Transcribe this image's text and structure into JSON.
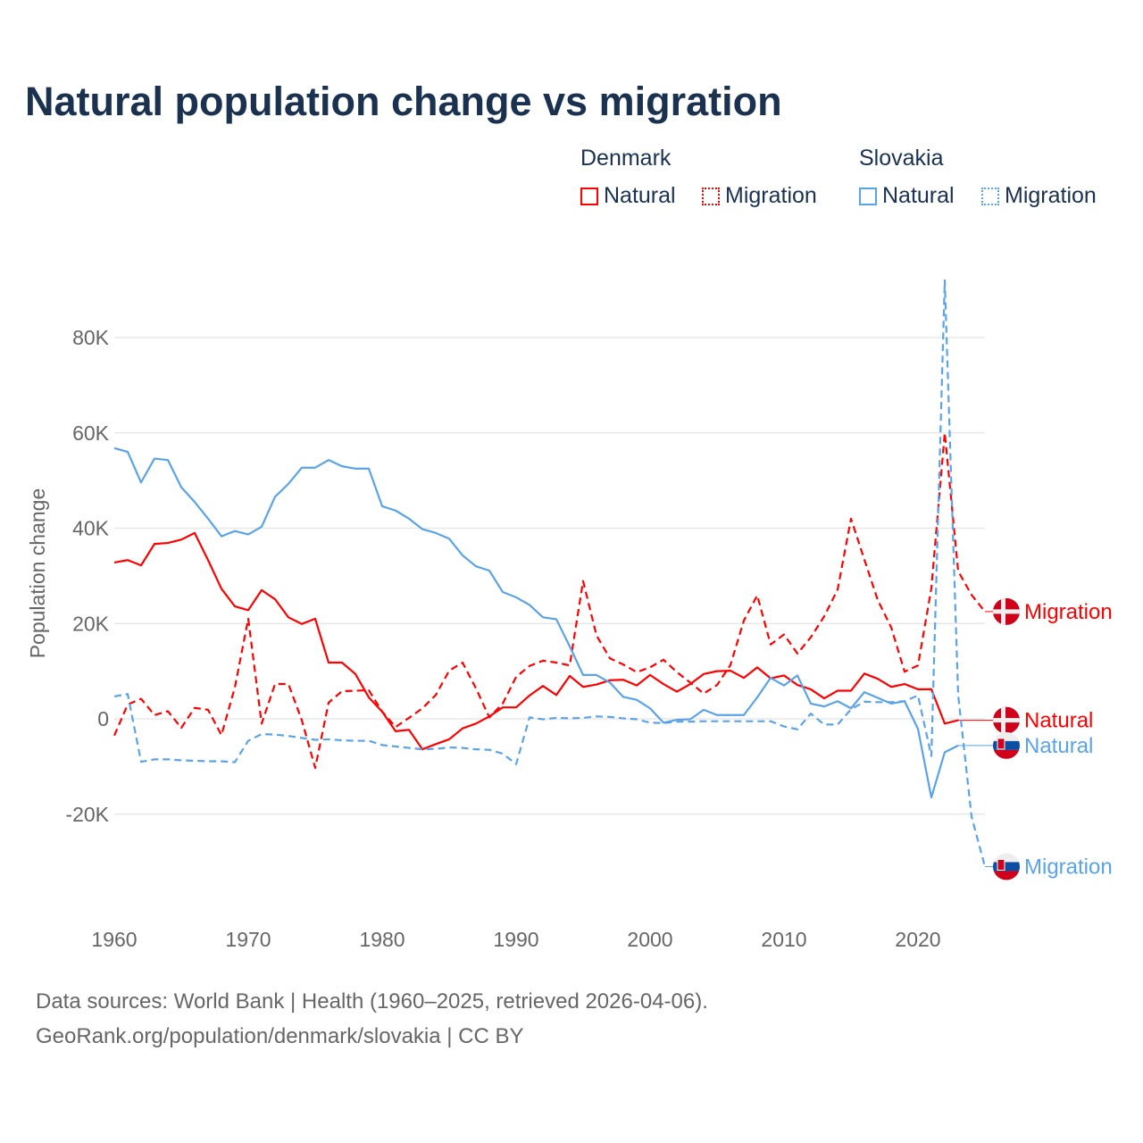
{
  "title": "Natural population change vs migration",
  "legend": {
    "groups": [
      {
        "country": "Denmark",
        "items": [
          "Natural",
          "Migration"
        ],
        "color": "#ff0000"
      },
      {
        "country": "Slovakia",
        "items": [
          "Natural",
          "Migration"
        ],
        "color": "#5ba3e8"
      }
    ]
  },
  "footer": {
    "line1": "Data sources: World Bank | Health (1960–2025, retrieved 2026-04-06).",
    "line2": "GeoRank.org/population/denmark/slovakia | CC BY"
  },
  "chart_data": {
    "type": "line",
    "title": "Natural population change vs migration",
    "xlabel": "",
    "ylabel": "Population change",
    "xlim": [
      1960,
      2025
    ],
    "ylim": [
      -35000,
      95000
    ],
    "xticks": [
      1960,
      1970,
      1980,
      1990,
      2000,
      2010,
      2020
    ],
    "yticks": [
      {
        "v": 80000,
        "label": "80K"
      },
      {
        "v": 60000,
        "label": "60K"
      },
      {
        "v": 40000,
        "label": "40K"
      },
      {
        "v": 20000,
        "label": "20K"
      },
      {
        "v": 0,
        "label": "0"
      },
      {
        "v": -20000,
        "label": "-20K"
      }
    ],
    "grid": true,
    "legend_position": "top-right",
    "start_year": 1960,
    "series": [
      {
        "name": "Denmark Natural",
        "end_label": "Natural",
        "country": "Denmark",
        "color": "#ff0000",
        "dash": false,
        "values": [
          32.8,
          33.3,
          32.2,
          36.7,
          36.9,
          37.6,
          39.0,
          33.3,
          27.3,
          23.6,
          22.8,
          27.0,
          25.1,
          21.3,
          19.9,
          21.0,
          11.8,
          11.8,
          9.4,
          4.5,
          1.5,
          -2.6,
          -2.3,
          -6.4,
          -5.3,
          -4.3,
          -2.0,
          -1.0,
          0.5,
          2.4,
          2.4,
          4.9,
          6.9,
          5.0,
          9.0,
          6.7,
          7.2,
          8.1,
          8.2,
          7.0,
          9.2,
          7.3,
          5.7,
          7.3,
          9.4,
          10.0,
          10.1,
          8.6,
          10.8,
          8.5,
          9.1,
          7.1,
          6.2,
          4.3,
          5.9,
          5.9,
          9.5,
          8.4,
          6.7,
          7.3,
          6.2,
          6.2,
          -1.0,
          -0.3
        ]
      },
      {
        "name": "Denmark Migration",
        "end_label": "Migration",
        "country": "Denmark",
        "color": "#ff0000",
        "dash": true,
        "values": [
          -3.5,
          3.0,
          4.2,
          0.8,
          1.6,
          -1.9,
          2.3,
          1.9,
          -3.4,
          6.6,
          21.0,
          -1.0,
          7.3,
          7.3,
          -0.3,
          -10.3,
          3.4,
          5.8,
          5.9,
          6.0,
          1.5,
          -1.7,
          0.2,
          2.2,
          5.0,
          10.1,
          11.8,
          6.4,
          0.3,
          3.2,
          8.8,
          11.1,
          12.2,
          11.8,
          11.2,
          28.9,
          17.5,
          12.7,
          11.4,
          9.8,
          10.8,
          12.4,
          9.8,
          7.6,
          5.3,
          7.1,
          11.3,
          20.6,
          25.9,
          15.6,
          17.7,
          13.7,
          17.1,
          21.5,
          27.1,
          42.0,
          33.4,
          24.9,
          19.2,
          9.9,
          11.2,
          27.4,
          60.0,
          31.0,
          26.0,
          22.5
        ]
      },
      {
        "name": "Slovakia Natural",
        "end_label": "Natural",
        "country": "Slovakia",
        "color": "#5ba3e8",
        "dash": false,
        "values": [
          56.8,
          56.0,
          49.6,
          54.6,
          54.3,
          48.6,
          45.5,
          42.0,
          38.3,
          39.4,
          38.7,
          40.3,
          46.6,
          49.3,
          52.7,
          52.7,
          54.3,
          53.0,
          52.5,
          52.5,
          44.6,
          43.7,
          42.0,
          39.8,
          39.0,
          37.8,
          34.3,
          32.0,
          31.1,
          26.6,
          25.5,
          23.9,
          21.3,
          20.9,
          15.2,
          9.2,
          9.2,
          7.6,
          4.6,
          4.0,
          2.2,
          -0.8,
          -0.2,
          -0.1,
          1.9,
          0.8,
          0.8,
          0.8,
          4.5,
          8.6,
          7.0,
          9.1,
          3.2,
          2.6,
          3.7,
          2.2,
          5.6,
          4.4,
          3.2,
          3.7,
          -2.1,
          -16.5,
          -7.0,
          -5.6
        ]
      },
      {
        "name": "Slovakia Migration",
        "end_label": "Migration",
        "country": "Slovakia",
        "color": "#5ba3e8",
        "dash": true,
        "values": [
          4.7,
          5.2,
          -9.0,
          -8.5,
          -8.5,
          -8.7,
          -8.8,
          -8.9,
          -8.9,
          -9.1,
          -4.6,
          -3.2,
          -3.3,
          -3.6,
          -4.0,
          -4.4,
          -4.3,
          -4.5,
          -4.6,
          -4.6,
          -5.5,
          -5.8,
          -6.1,
          -6.4,
          -6.3,
          -6.0,
          -6.1,
          -6.4,
          -6.5,
          -7.3,
          -9.5,
          0.3,
          -0.1,
          0.2,
          0.1,
          0.2,
          0.5,
          0.4,
          0.1,
          -0.1,
          -0.8,
          -0.9,
          -0.6,
          -0.6,
          -0.5,
          -0.5,
          -0.5,
          -0.5,
          -0.5,
          -0.5,
          -1.6,
          -2.2,
          1.1,
          -1.2,
          -1.2,
          2.0,
          3.6,
          3.5,
          3.5,
          3.7,
          4.9,
          -7.8,
          92.0,
          5.0,
          -20.5,
          -31.0
        ]
      }
    ],
    "units_note": "values in thousands"
  }
}
